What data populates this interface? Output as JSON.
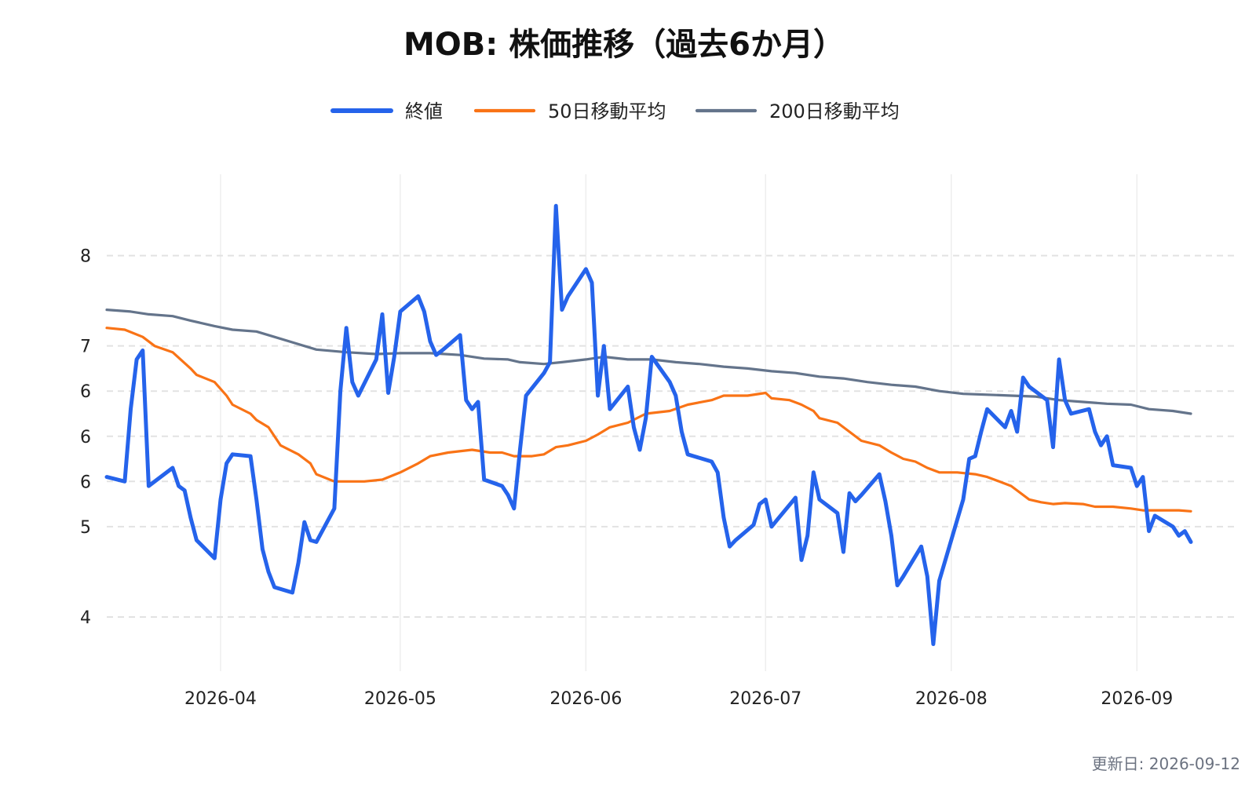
{
  "chart_data": {
    "type": "line",
    "title": "MOB: 株価推移（過去6か月）",
    "xlabel": "",
    "ylabel": "",
    "ylim": [
      3.4,
      8.9
    ],
    "grid": true,
    "legend_position": "top-center",
    "y_ticks": [
      {
        "value": 4,
        "label": "4"
      },
      {
        "value": 5,
        "label": "5"
      },
      {
        "value": 6,
        "label": "6"
      },
      {
        "value": 7,
        "label": "7"
      },
      {
        "value": 8,
        "label": "8"
      }
    ],
    "y_ticks_extra": [
      {
        "value": 5.5,
        "label": "6"
      },
      {
        "value": 6.5,
        "label": "6"
      }
    ],
    "x_ticks": [
      {
        "date": "2026-04-01",
        "label": "2026-04"
      },
      {
        "date": "2026-05-01",
        "label": "2026-05"
      },
      {
        "date": "2026-06-01",
        "label": "2026-06"
      },
      {
        "date": "2026-07-01",
        "label": "2026-07"
      },
      {
        "date": "2026-08-01",
        "label": "2026-08"
      },
      {
        "date": "2026-09-01",
        "label": "2026-09"
      }
    ],
    "xlim": [
      "2026-03-13",
      "2026-09-18"
    ],
    "series": [
      {
        "name": "終値",
        "color": "#2563eb",
        "points": [
          [
            "2026-03-13",
            5.55
          ],
          [
            "2026-03-16",
            5.5
          ],
          [
            "2026-03-17",
            6.3
          ],
          [
            "2026-03-18",
            6.85
          ],
          [
            "2026-03-19",
            6.95
          ],
          [
            "2026-03-20",
            5.45
          ],
          [
            "2026-03-23",
            5.6
          ],
          [
            "2026-03-24",
            5.65
          ],
          [
            "2026-03-25",
            5.45
          ],
          [
            "2026-03-26",
            5.4
          ],
          [
            "2026-03-27",
            5.1
          ],
          [
            "2026-03-28",
            4.85
          ],
          [
            "2026-03-31",
            4.65
          ],
          [
            "2026-04-01",
            5.3
          ],
          [
            "2026-04-02",
            5.7
          ],
          [
            "2026-04-03",
            5.8
          ],
          [
            "2026-04-06",
            5.78
          ],
          [
            "2026-04-07",
            5.3
          ],
          [
            "2026-04-08",
            4.75
          ],
          [
            "2026-04-09",
            4.5
          ],
          [
            "2026-04-10",
            4.33
          ],
          [
            "2026-04-13",
            4.27
          ],
          [
            "2026-04-14",
            4.6
          ],
          [
            "2026-04-15",
            5.05
          ],
          [
            "2026-04-16",
            4.85
          ],
          [
            "2026-04-17",
            4.83
          ],
          [
            "2026-04-20",
            5.2
          ],
          [
            "2026-04-21",
            6.5
          ],
          [
            "2026-04-22",
            7.2
          ],
          [
            "2026-04-23",
            6.6
          ],
          [
            "2026-04-24",
            6.45
          ],
          [
            "2026-04-27",
            6.85
          ],
          [
            "2026-04-28",
            7.35
          ],
          [
            "2026-04-29",
            6.48
          ],
          [
            "2026-04-30",
            6.88
          ],
          [
            "2026-05-01",
            7.38
          ],
          [
            "2026-05-04",
            7.55
          ],
          [
            "2026-05-05",
            7.38
          ],
          [
            "2026-05-06",
            7.05
          ],
          [
            "2026-05-07",
            6.9
          ],
          [
            "2026-05-08",
            6.95
          ],
          [
            "2026-05-11",
            7.12
          ],
          [
            "2026-05-12",
            6.4
          ],
          [
            "2026-05-13",
            6.3
          ],
          [
            "2026-05-14",
            6.38
          ],
          [
            "2026-05-15",
            5.52
          ],
          [
            "2026-05-18",
            5.45
          ],
          [
            "2026-05-19",
            5.35
          ],
          [
            "2026-05-20",
            5.2
          ],
          [
            "2026-05-21",
            5.85
          ],
          [
            "2026-05-22",
            6.45
          ],
          [
            "2026-05-25",
            6.7
          ],
          [
            "2026-05-26",
            6.82
          ],
          [
            "2026-05-27",
            8.55
          ],
          [
            "2026-05-28",
            7.4
          ],
          [
            "2026-05-29",
            7.55
          ],
          [
            "2026-06-01",
            7.85
          ],
          [
            "2026-06-02",
            7.7
          ],
          [
            "2026-06-03",
            6.45
          ],
          [
            "2026-06-04",
            7.0
          ],
          [
            "2026-06-05",
            6.3
          ],
          [
            "2026-06-08",
            6.55
          ],
          [
            "2026-06-09",
            6.1
          ],
          [
            "2026-06-10",
            5.85
          ],
          [
            "2026-06-11",
            6.2
          ],
          [
            "2026-06-12",
            6.88
          ],
          [
            "2026-06-15",
            6.6
          ],
          [
            "2026-06-16",
            6.45
          ],
          [
            "2026-06-17",
            6.05
          ],
          [
            "2026-06-18",
            5.8
          ],
          [
            "2026-06-19",
            5.78
          ],
          [
            "2026-06-22",
            5.72
          ],
          [
            "2026-06-23",
            5.6
          ],
          [
            "2026-06-24",
            5.1
          ],
          [
            "2026-06-25",
            4.78
          ],
          [
            "2026-06-26",
            4.85
          ],
          [
            "2026-06-29",
            5.02
          ],
          [
            "2026-06-30",
            5.25
          ],
          [
            "2026-07-01",
            5.3
          ],
          [
            "2026-07-02",
            5.0
          ],
          [
            "2026-07-03",
            5.08
          ],
          [
            "2026-07-06",
            5.32
          ],
          [
            "2026-07-07",
            4.63
          ],
          [
            "2026-07-08",
            4.9
          ],
          [
            "2026-07-09",
            5.6
          ],
          [
            "2026-07-10",
            5.3
          ],
          [
            "2026-07-13",
            5.15
          ],
          [
            "2026-07-14",
            4.72
          ],
          [
            "2026-07-15",
            5.37
          ],
          [
            "2026-07-16",
            5.28
          ],
          [
            "2026-07-17",
            5.35
          ],
          [
            "2026-07-20",
            5.58
          ],
          [
            "2026-07-21",
            5.28
          ],
          [
            "2026-07-22",
            4.9
          ],
          [
            "2026-07-23",
            4.35
          ],
          [
            "2026-07-24",
            4.45
          ],
          [
            "2026-07-27",
            4.78
          ],
          [
            "2026-07-28",
            4.45
          ],
          [
            "2026-07-29",
            3.7
          ],
          [
            "2026-07-30",
            4.4
          ],
          [
            "2026-08-03",
            5.3
          ],
          [
            "2026-08-04",
            5.75
          ],
          [
            "2026-08-05",
            5.78
          ],
          [
            "2026-08-06",
            6.05
          ],
          [
            "2026-08-07",
            6.3
          ],
          [
            "2026-08-10",
            6.1
          ],
          [
            "2026-08-11",
            6.28
          ],
          [
            "2026-08-12",
            6.05
          ],
          [
            "2026-08-13",
            6.65
          ],
          [
            "2026-08-14",
            6.55
          ],
          [
            "2026-08-17",
            6.4
          ],
          [
            "2026-08-18",
            5.88
          ],
          [
            "2026-08-19",
            6.85
          ],
          [
            "2026-08-20",
            6.4
          ],
          [
            "2026-08-21",
            6.25
          ],
          [
            "2026-08-24",
            6.3
          ],
          [
            "2026-08-25",
            6.05
          ],
          [
            "2026-08-26",
            5.9
          ],
          [
            "2026-08-27",
            6.0
          ],
          [
            "2026-08-28",
            5.68
          ],
          [
            "2026-08-31",
            5.65
          ],
          [
            "2026-09-01",
            5.45
          ],
          [
            "2026-09-02",
            5.55
          ],
          [
            "2026-09-03",
            4.95
          ],
          [
            "2026-09-04",
            5.12
          ],
          [
            "2026-09-07",
            5.0
          ],
          [
            "2026-09-08",
            4.9
          ],
          [
            "2026-09-09",
            4.95
          ],
          [
            "2026-09-10",
            4.83
          ]
        ]
      },
      {
        "name": "50日移動平均",
        "color": "#f97316",
        "points": [
          [
            "2026-03-13",
            7.2
          ],
          [
            "2026-03-16",
            7.18
          ],
          [
            "2026-03-19",
            7.1
          ],
          [
            "2026-03-21",
            7.0
          ],
          [
            "2026-03-24",
            6.93
          ],
          [
            "2026-03-27",
            6.75
          ],
          [
            "2026-03-28",
            6.68
          ],
          [
            "2026-03-31",
            6.6
          ],
          [
            "2026-04-02",
            6.45
          ],
          [
            "2026-04-03",
            6.35
          ],
          [
            "2026-04-06",
            6.25
          ],
          [
            "2026-04-07",
            6.18
          ],
          [
            "2026-04-09",
            6.1
          ],
          [
            "2026-04-11",
            5.9
          ],
          [
            "2026-04-14",
            5.8
          ],
          [
            "2026-04-16",
            5.7
          ],
          [
            "2026-04-17",
            5.58
          ],
          [
            "2026-04-20",
            5.5
          ],
          [
            "2026-04-23",
            5.5
          ],
          [
            "2026-04-25",
            5.5
          ],
          [
            "2026-04-28",
            5.52
          ],
          [
            "2026-05-01",
            5.6
          ],
          [
            "2026-05-04",
            5.7
          ],
          [
            "2026-05-06",
            5.78
          ],
          [
            "2026-05-09",
            5.82
          ],
          [
            "2026-05-13",
            5.85
          ],
          [
            "2026-05-16",
            5.82
          ],
          [
            "2026-05-18",
            5.82
          ],
          [
            "2026-05-20",
            5.78
          ],
          [
            "2026-05-23",
            5.78
          ],
          [
            "2026-05-25",
            5.8
          ],
          [
            "2026-05-27",
            5.88
          ],
          [
            "2026-05-29",
            5.9
          ],
          [
            "2026-06-01",
            5.95
          ],
          [
            "2026-06-03",
            6.02
          ],
          [
            "2026-06-05",
            6.1
          ],
          [
            "2026-06-08",
            6.15
          ],
          [
            "2026-06-11",
            6.25
          ],
          [
            "2026-06-15",
            6.28
          ],
          [
            "2026-06-18",
            6.35
          ],
          [
            "2026-06-22",
            6.4
          ],
          [
            "2026-06-24",
            6.45
          ],
          [
            "2026-06-28",
            6.45
          ],
          [
            "2026-07-01",
            6.48
          ],
          [
            "2026-07-02",
            6.42
          ],
          [
            "2026-07-05",
            6.4
          ],
          [
            "2026-07-07",
            6.35
          ],
          [
            "2026-07-09",
            6.28
          ],
          [
            "2026-07-10",
            6.2
          ],
          [
            "2026-07-13",
            6.15
          ],
          [
            "2026-07-15",
            6.05
          ],
          [
            "2026-07-17",
            5.95
          ],
          [
            "2026-07-20",
            5.9
          ],
          [
            "2026-07-22",
            5.82
          ],
          [
            "2026-07-24",
            5.75
          ],
          [
            "2026-07-26",
            5.72
          ],
          [
            "2026-07-28",
            5.65
          ],
          [
            "2026-07-30",
            5.6
          ],
          [
            "2026-08-02",
            5.6
          ],
          [
            "2026-08-05",
            5.58
          ],
          [
            "2026-08-07",
            5.55
          ],
          [
            "2026-08-09",
            5.5
          ],
          [
            "2026-08-11",
            5.45
          ],
          [
            "2026-08-14",
            5.3
          ],
          [
            "2026-08-16",
            5.27
          ],
          [
            "2026-08-18",
            5.25
          ],
          [
            "2026-08-20",
            5.26
          ],
          [
            "2026-08-23",
            5.25
          ],
          [
            "2026-08-25",
            5.22
          ],
          [
            "2026-08-28",
            5.22
          ],
          [
            "2026-08-31",
            5.2
          ],
          [
            "2026-09-02",
            5.18
          ],
          [
            "2026-09-05",
            5.18
          ],
          [
            "2026-09-08",
            5.18
          ],
          [
            "2026-09-10",
            5.17
          ]
        ]
      },
      {
        "name": "200日移動平均",
        "color": "#64748b",
        "points": [
          [
            "2026-03-13",
            7.4
          ],
          [
            "2026-03-17",
            7.38
          ],
          [
            "2026-03-20",
            7.35
          ],
          [
            "2026-03-24",
            7.33
          ],
          [
            "2026-03-27",
            7.28
          ],
          [
            "2026-03-31",
            7.22
          ],
          [
            "2026-04-03",
            7.18
          ],
          [
            "2026-04-07",
            7.16
          ],
          [
            "2026-04-10",
            7.1
          ],
          [
            "2026-04-14",
            7.02
          ],
          [
            "2026-04-17",
            6.96
          ],
          [
            "2026-04-22",
            6.93
          ],
          [
            "2026-04-27",
            6.91
          ],
          [
            "2026-05-01",
            6.92
          ],
          [
            "2026-05-06",
            6.92
          ],
          [
            "2026-05-11",
            6.9
          ],
          [
            "2026-05-15",
            6.86
          ],
          [
            "2026-05-19",
            6.85
          ],
          [
            "2026-05-21",
            6.82
          ],
          [
            "2026-05-25",
            6.8
          ],
          [
            "2026-05-28",
            6.82
          ],
          [
            "2026-06-01",
            6.85
          ],
          [
            "2026-06-04",
            6.88
          ],
          [
            "2026-06-08",
            6.85
          ],
          [
            "2026-06-12",
            6.85
          ],
          [
            "2026-06-16",
            6.82
          ],
          [
            "2026-06-20",
            6.8
          ],
          [
            "2026-06-24",
            6.77
          ],
          [
            "2026-06-28",
            6.75
          ],
          [
            "2026-07-02",
            6.72
          ],
          [
            "2026-07-06",
            6.7
          ],
          [
            "2026-07-10",
            6.66
          ],
          [
            "2026-07-14",
            6.64
          ],
          [
            "2026-07-18",
            6.6
          ],
          [
            "2026-07-22",
            6.57
          ],
          [
            "2026-07-26",
            6.55
          ],
          [
            "2026-07-30",
            6.5
          ],
          [
            "2026-08-03",
            6.47
          ],
          [
            "2026-08-07",
            6.46
          ],
          [
            "2026-08-11",
            6.45
          ],
          [
            "2026-08-15",
            6.44
          ],
          [
            "2026-08-19",
            6.4
          ],
          [
            "2026-08-23",
            6.38
          ],
          [
            "2026-08-27",
            6.36
          ],
          [
            "2026-08-31",
            6.35
          ],
          [
            "2026-09-03",
            6.3
          ],
          [
            "2026-09-07",
            6.28
          ],
          [
            "2026-09-10",
            6.25
          ]
        ]
      }
    ]
  },
  "footer": {
    "updated": "更新日: 2026-09-12"
  }
}
